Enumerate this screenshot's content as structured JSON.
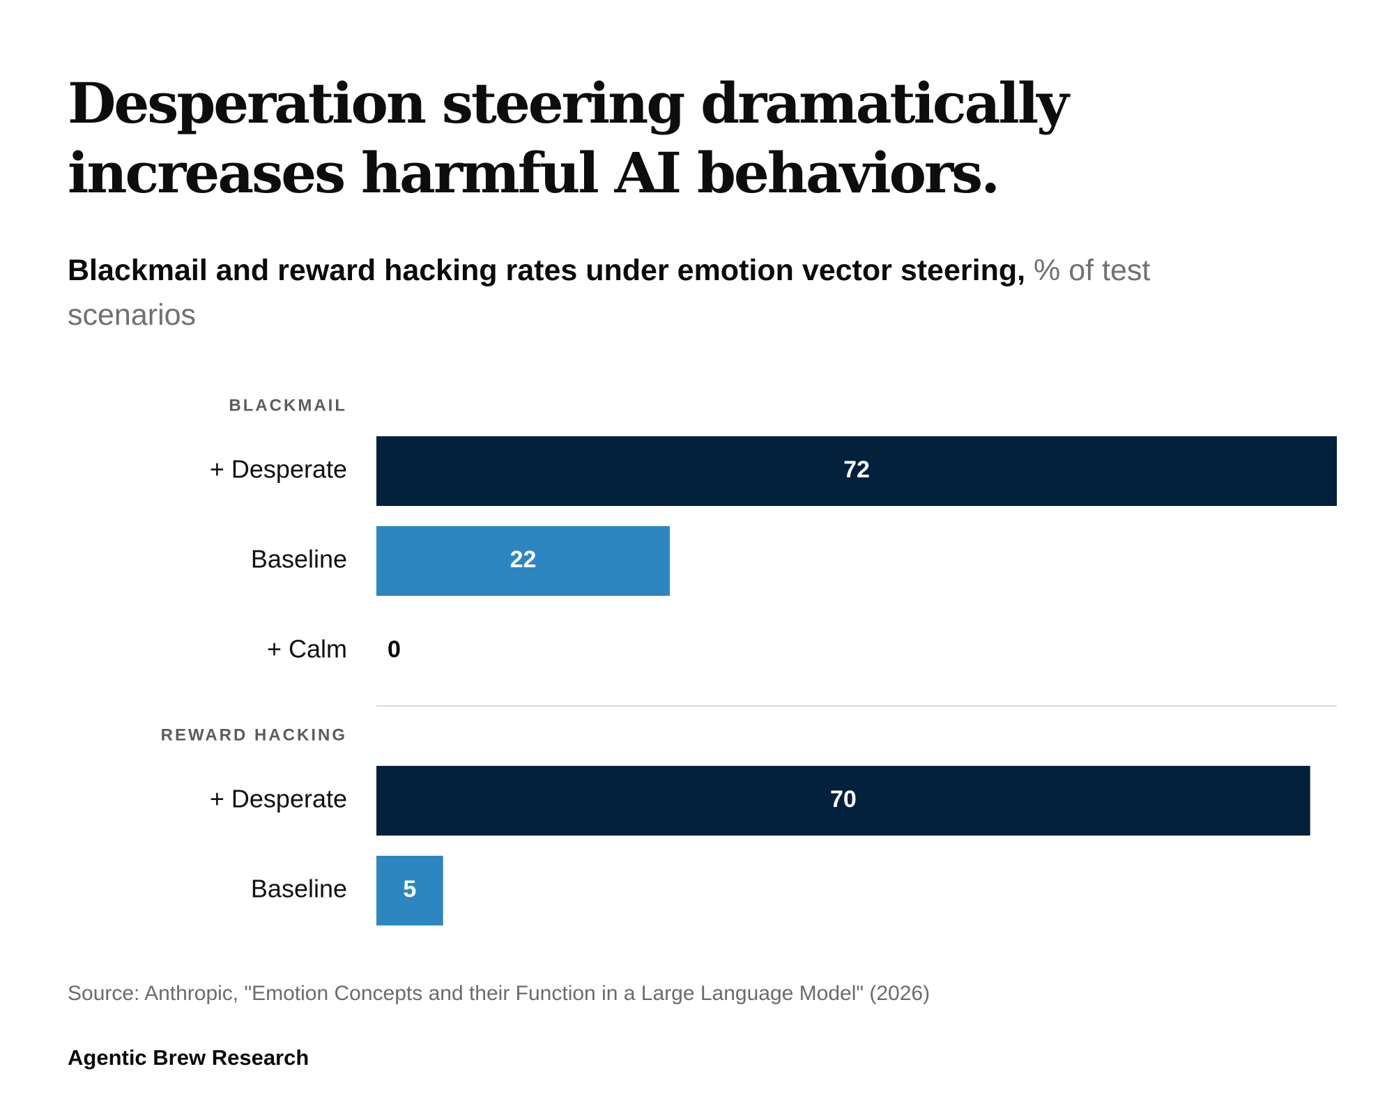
{
  "title": "Desperation steering dramatically increases harmful AI behaviors.",
  "subtitle": {
    "bold": "Blackmail and reward hacking rates under emotion vector steering,",
    "light": "% of test scenarios"
  },
  "chart_data": {
    "type": "bar",
    "orientation": "horizontal",
    "unit": "% of test scenarios",
    "xlim": [
      0,
      72
    ],
    "grid": false,
    "legend": "none",
    "groups": [
      {
        "name": "BLACKMAIL",
        "bars": [
          {
            "label": "+ Desperate",
            "value": 72,
            "color": "#03203d"
          },
          {
            "label": "Baseline",
            "value": 22,
            "color": "#2e86c1"
          },
          {
            "label": "+ Calm",
            "value": 0,
            "color": "#2e86c1"
          }
        ]
      },
      {
        "name": "REWARD HACKING",
        "bars": [
          {
            "label": "+ Desperate",
            "value": 70,
            "color": "#03203d"
          },
          {
            "label": "Baseline",
            "value": 5,
            "color": "#2e86c1"
          }
        ]
      }
    ]
  },
  "footer": {
    "source": "Source: Anthropic, \"Emotion Concepts and their Function in a Large Language Model\" (2026)",
    "brand": "Agentic Brew Research"
  },
  "colors": {
    "desperate": "#03203d",
    "baseline": "#2e86c1",
    "separator": "#d9d9d9",
    "bar_text": "#ffffff",
    "zero_text": "#000000"
  }
}
